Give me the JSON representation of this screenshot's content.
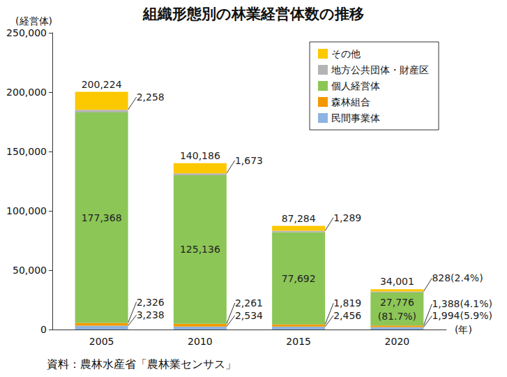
{
  "chart_data": {
    "type": "bar",
    "title": "組織形態別の林業経営体数の推移",
    "y_label": "(経営体)",
    "x_label": "(年)",
    "note": "資料：農林水産省「農林業センサス」",
    "categories": [
      "2005",
      "2010",
      "2015",
      "2020"
    ],
    "series": [
      {
        "name": "民間事業体",
        "color": "#8db4e2",
        "values": [
          3238,
          2534,
          2456,
          1994
        ],
        "value_labels": [
          "3,238",
          "2,534",
          "2,456",
          "1,994(5.9%)"
        ]
      },
      {
        "name": "森林組合",
        "color": "#f39800",
        "values": [
          2326,
          2261,
          1819,
          1388
        ],
        "value_labels": [
          "2,326",
          "2,261",
          "1,819",
          "1,388(4.1%)"
        ]
      },
      {
        "name": "個人経営体",
        "color": "#8cc657",
        "values": [
          177368,
          125136,
          77692,
          27776
        ],
        "value_labels": [
          "177,368",
          "125,136",
          "77,692",
          "27,776\n(81.7%)"
        ]
      },
      {
        "name": "地方公共団体・財産区",
        "color": "#b4b4b4",
        "values": [
          2258,
          1673,
          1289,
          828
        ],
        "value_labels": [
          "2,258",
          "1,673",
          "1,289",
          "828(2.4%)"
        ]
      },
      {
        "name": "その他",
        "color": "#fcc800",
        "values": [
          15034,
          8582,
          4028,
          2015
        ]
      }
    ],
    "totals": [
      200224,
      140186,
      87284,
      34001
    ],
    "total_labels": [
      "200,224",
      "140,186",
      "87,284",
      "34,001"
    ],
    "ylim": [
      0,
      250000
    ],
    "yticks": [
      0,
      {
        "value": 50000,
        "label": "50,000"
      },
      {
        "value": 100000,
        "label": "100,000"
      },
      {
        "value": 150000,
        "label": "150,000"
      },
      {
        "value": 200000,
        "label": "200,000"
      },
      {
        "value": 250000,
        "label": "250,000"
      }
    ],
    "stacked": true,
    "data_labels": true,
    "grid": false,
    "legend": "top-right"
  }
}
